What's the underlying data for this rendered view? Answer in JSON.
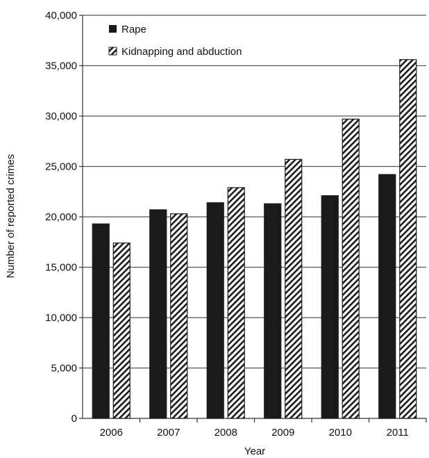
{
  "chart_data": {
    "type": "bar",
    "categories": [
      "2006",
      "2007",
      "2008",
      "2009",
      "2010",
      "2011"
    ],
    "series": [
      {
        "name": "Rape",
        "values": [
          19300,
          20700,
          21400,
          21300,
          22100,
          24200
        ],
        "fill": "solid",
        "color": "#1a1a1a"
      },
      {
        "name": "Kidnapping and abduction",
        "values": [
          17400,
          20300,
          22900,
          25700,
          29700,
          35600
        ],
        "fill": "diagonal-hatch",
        "color": "#1a1a1a"
      }
    ],
    "xlabel": "Year",
    "ylabel": "Number of reported crimes",
    "ylim": [
      0,
      40000
    ],
    "y_ticks": [
      0,
      5000,
      10000,
      15000,
      20000,
      25000,
      30000,
      35000,
      40000
    ],
    "y_tick_labels": [
      "0",
      "5,000",
      "10,000",
      "15,000",
      "20,000",
      "25,000",
      "30,000",
      "35,000",
      "40,000"
    ],
    "grid": "horizontal",
    "legend_position": "top-left"
  }
}
